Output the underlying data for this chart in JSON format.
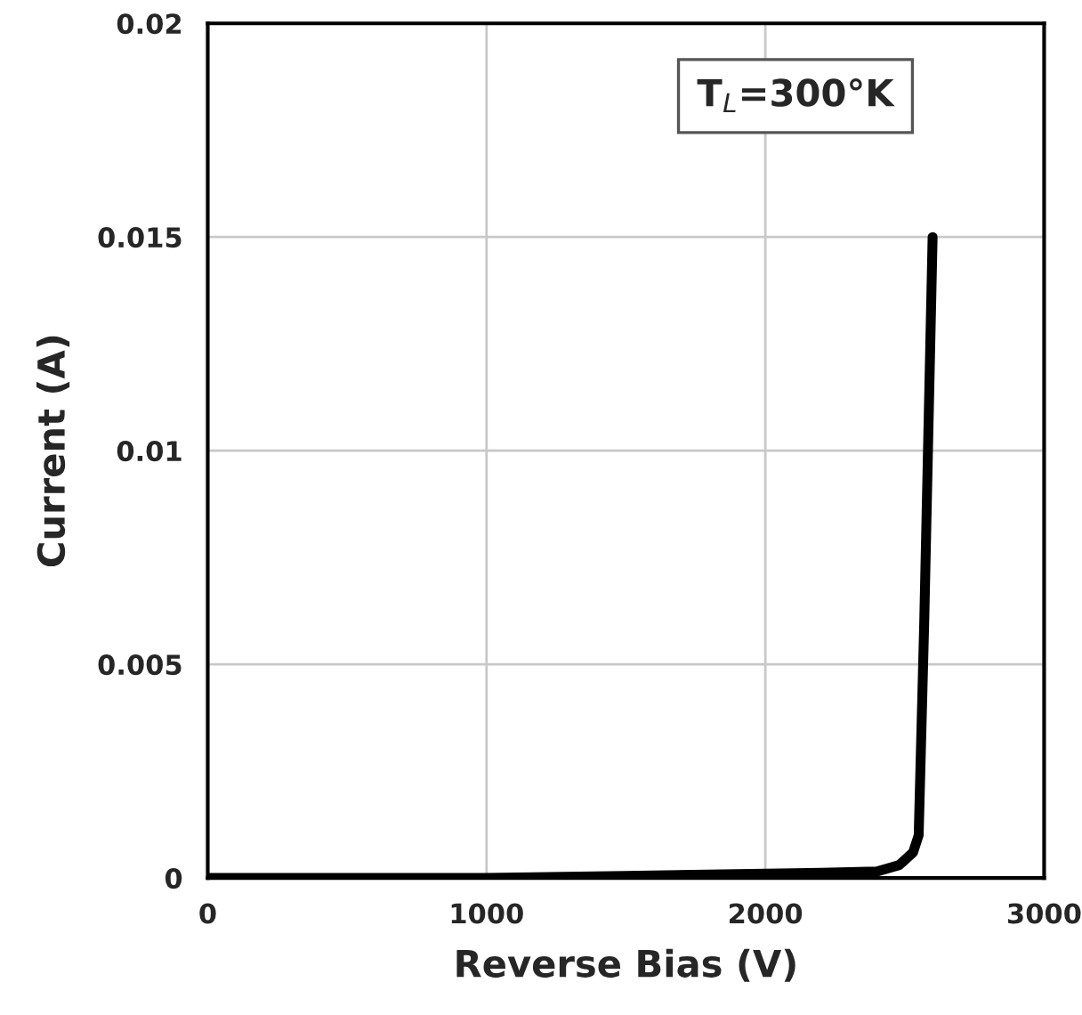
{
  "chart_data": {
    "type": "line",
    "xlabel": "Reverse Bias (V)",
    "ylabel": "Current (A)",
    "annotations": [
      "T$_{L}$=300°K"
    ],
    "series": [
      {
        "color": "#000000",
        "x": [
          0,
          500,
          1000,
          1500,
          2000,
          2200,
          2400,
          2480,
          2530,
          2550,
          2570,
          2600
        ],
        "values": [
          0,
          0,
          0,
          5e-05,
          0.0001,
          0.00012,
          0.00015,
          0.0003,
          0.0006,
          0.001,
          0.006,
          0.015
        ]
      }
    ],
    "xlim": [
      0,
      3000
    ],
    "xticks": [
      0,
      1000,
      2000,
      3000
    ],
    "ylim": [
      0,
      0.02
    ],
    "yticks": [
      0,
      0.005,
      0.01,
      0.015,
      0.02
    ],
    "grid": true,
    "legend": false,
    "marker": "none",
    "line_style": "solid"
  }
}
